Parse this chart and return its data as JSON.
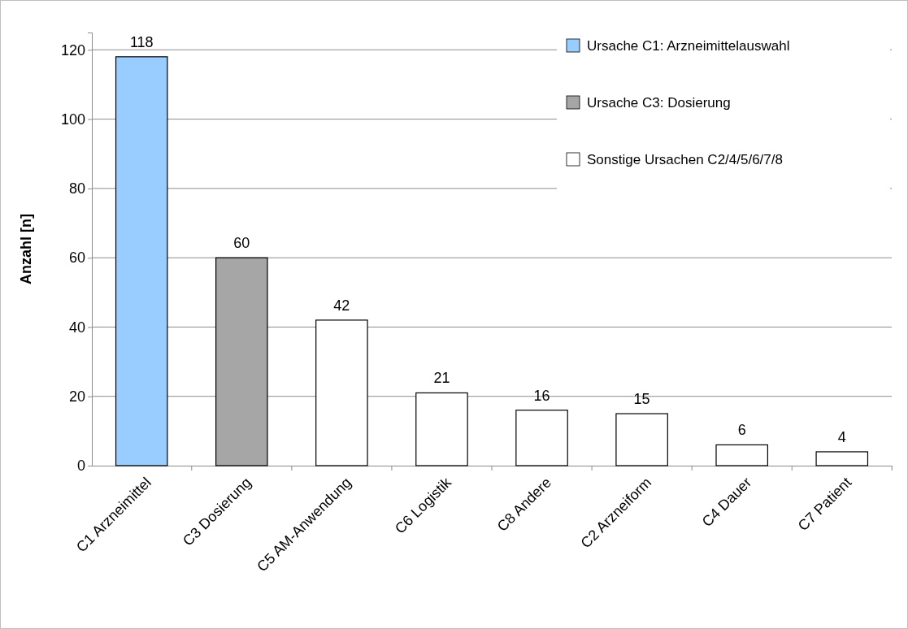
{
  "chart_data": {
    "type": "bar",
    "ylabel": "Anzahl [n]",
    "categories": [
      "C1 Arzneimittel",
      "C3 Dosierung",
      "C5 AM-Anwendung",
      "C6 Logistik",
      "C8 Andere",
      "C2 Arzneiform",
      "C4 Dauer",
      "C7 Patient"
    ],
    "series": [
      {
        "name": "Ursache C1: Arzneimittelauswahl",
        "color": "#99ccff",
        "values": [
          118,
          null,
          null,
          null,
          null,
          null,
          null,
          null
        ]
      },
      {
        "name": "Ursache C3: Dosierung",
        "color": "#a6a6a6",
        "values": [
          null,
          60,
          null,
          null,
          null,
          null,
          null,
          null
        ]
      },
      {
        "name": "Sonstige Ursachen C2/4/5/6/7/8",
        "color": "#ffffff",
        "values": [
          null,
          null,
          42,
          21,
          16,
          15,
          6,
          4
        ]
      }
    ],
    "stacked": true,
    "ylim": [
      0,
      125
    ],
    "yticks": [
      0,
      20,
      40,
      60,
      80,
      100,
      120
    ],
    "grid": "y",
    "legend": "top right",
    "data_labels": true
  }
}
